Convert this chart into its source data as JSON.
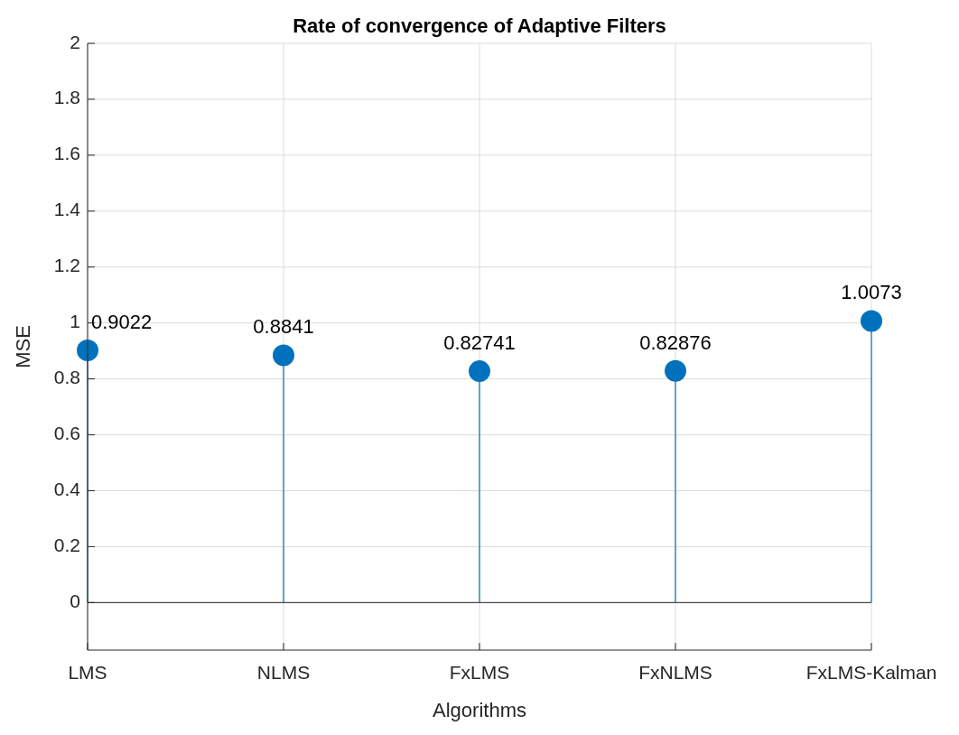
{
  "chart_data": {
    "type": "lollipop",
    "title": "Rate of convergence of Adaptive Filters",
    "xlabel": "Algorithms",
    "ylabel": "MSE",
    "categories": [
      "LMS",
      "NLMS",
      "FxLMS",
      "FxNLMS",
      "FxLMS-Kalman"
    ],
    "values": [
      0.9022,
      0.8841,
      0.82741,
      0.82876,
      1.0073
    ],
    "color": "#0072bd",
    "data_labels": true,
    "value_labels": [
      "0.9022",
      "0.8841",
      "0.82741",
      "0.82876",
      "1.0073"
    ],
    "ylim": [
      -0.17,
      2
    ],
    "yticks": [
      0,
      0.2,
      0.4,
      0.6,
      0.8,
      1,
      1.2,
      1.4,
      1.6,
      1.8,
      2
    ],
    "grid": true,
    "marker": "circle"
  }
}
